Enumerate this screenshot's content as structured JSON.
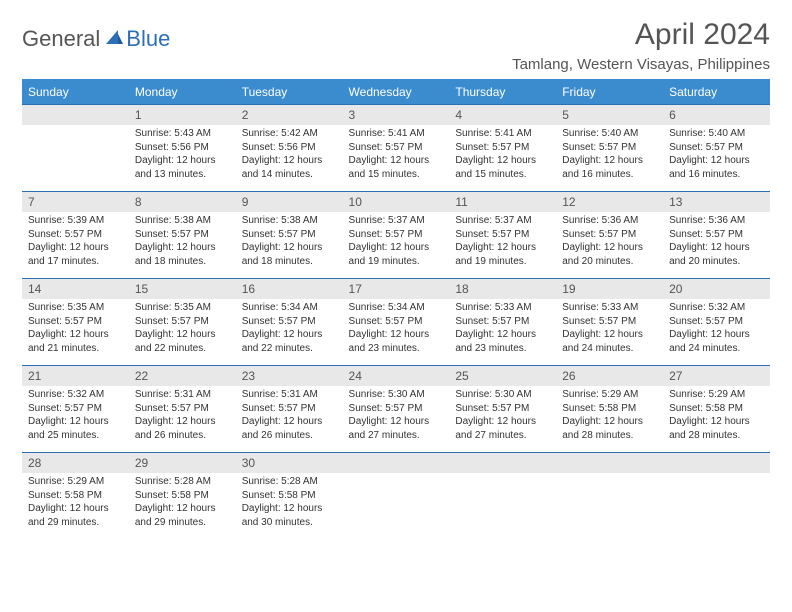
{
  "logo": {
    "text1": "General",
    "text2": "Blue"
  },
  "title": "April 2024",
  "location": "Tamlang, Western Visayas, Philippines",
  "colors": {
    "header_bg": "#3b8ccf",
    "header_text": "#ffffff",
    "date_bg": "#e8e8e8",
    "date_text": "#555555",
    "border": "#2c6fb5",
    "body_text": "#333333"
  },
  "weekdays": [
    "Sunday",
    "Monday",
    "Tuesday",
    "Wednesday",
    "Thursday",
    "Friday",
    "Saturday"
  ],
  "weeks": [
    {
      "dates": [
        "",
        "1",
        "2",
        "3",
        "4",
        "5",
        "6"
      ],
      "cells": [
        null,
        {
          "sunrise": "Sunrise: 5:43 AM",
          "sunset": "Sunset: 5:56 PM",
          "day1": "Daylight: 12 hours",
          "day2": "and 13 minutes."
        },
        {
          "sunrise": "Sunrise: 5:42 AM",
          "sunset": "Sunset: 5:56 PM",
          "day1": "Daylight: 12 hours",
          "day2": "and 14 minutes."
        },
        {
          "sunrise": "Sunrise: 5:41 AM",
          "sunset": "Sunset: 5:57 PM",
          "day1": "Daylight: 12 hours",
          "day2": "and 15 minutes."
        },
        {
          "sunrise": "Sunrise: 5:41 AM",
          "sunset": "Sunset: 5:57 PM",
          "day1": "Daylight: 12 hours",
          "day2": "and 15 minutes."
        },
        {
          "sunrise": "Sunrise: 5:40 AM",
          "sunset": "Sunset: 5:57 PM",
          "day1": "Daylight: 12 hours",
          "day2": "and 16 minutes."
        },
        {
          "sunrise": "Sunrise: 5:40 AM",
          "sunset": "Sunset: 5:57 PM",
          "day1": "Daylight: 12 hours",
          "day2": "and 16 minutes."
        }
      ]
    },
    {
      "dates": [
        "7",
        "8",
        "9",
        "10",
        "11",
        "12",
        "13"
      ],
      "cells": [
        {
          "sunrise": "Sunrise: 5:39 AM",
          "sunset": "Sunset: 5:57 PM",
          "day1": "Daylight: 12 hours",
          "day2": "and 17 minutes."
        },
        {
          "sunrise": "Sunrise: 5:38 AM",
          "sunset": "Sunset: 5:57 PM",
          "day1": "Daylight: 12 hours",
          "day2": "and 18 minutes."
        },
        {
          "sunrise": "Sunrise: 5:38 AM",
          "sunset": "Sunset: 5:57 PM",
          "day1": "Daylight: 12 hours",
          "day2": "and 18 minutes."
        },
        {
          "sunrise": "Sunrise: 5:37 AM",
          "sunset": "Sunset: 5:57 PM",
          "day1": "Daylight: 12 hours",
          "day2": "and 19 minutes."
        },
        {
          "sunrise": "Sunrise: 5:37 AM",
          "sunset": "Sunset: 5:57 PM",
          "day1": "Daylight: 12 hours",
          "day2": "and 19 minutes."
        },
        {
          "sunrise": "Sunrise: 5:36 AM",
          "sunset": "Sunset: 5:57 PM",
          "day1": "Daylight: 12 hours",
          "day2": "and 20 minutes."
        },
        {
          "sunrise": "Sunrise: 5:36 AM",
          "sunset": "Sunset: 5:57 PM",
          "day1": "Daylight: 12 hours",
          "day2": "and 20 minutes."
        }
      ]
    },
    {
      "dates": [
        "14",
        "15",
        "16",
        "17",
        "18",
        "19",
        "20"
      ],
      "cells": [
        {
          "sunrise": "Sunrise: 5:35 AM",
          "sunset": "Sunset: 5:57 PM",
          "day1": "Daylight: 12 hours",
          "day2": "and 21 minutes."
        },
        {
          "sunrise": "Sunrise: 5:35 AM",
          "sunset": "Sunset: 5:57 PM",
          "day1": "Daylight: 12 hours",
          "day2": "and 22 minutes."
        },
        {
          "sunrise": "Sunrise: 5:34 AM",
          "sunset": "Sunset: 5:57 PM",
          "day1": "Daylight: 12 hours",
          "day2": "and 22 minutes."
        },
        {
          "sunrise": "Sunrise: 5:34 AM",
          "sunset": "Sunset: 5:57 PM",
          "day1": "Daylight: 12 hours",
          "day2": "and 23 minutes."
        },
        {
          "sunrise": "Sunrise: 5:33 AM",
          "sunset": "Sunset: 5:57 PM",
          "day1": "Daylight: 12 hours",
          "day2": "and 23 minutes."
        },
        {
          "sunrise": "Sunrise: 5:33 AM",
          "sunset": "Sunset: 5:57 PM",
          "day1": "Daylight: 12 hours",
          "day2": "and 24 minutes."
        },
        {
          "sunrise": "Sunrise: 5:32 AM",
          "sunset": "Sunset: 5:57 PM",
          "day1": "Daylight: 12 hours",
          "day2": "and 24 minutes."
        }
      ]
    },
    {
      "dates": [
        "21",
        "22",
        "23",
        "24",
        "25",
        "26",
        "27"
      ],
      "cells": [
        {
          "sunrise": "Sunrise: 5:32 AM",
          "sunset": "Sunset: 5:57 PM",
          "day1": "Daylight: 12 hours",
          "day2": "and 25 minutes."
        },
        {
          "sunrise": "Sunrise: 5:31 AM",
          "sunset": "Sunset: 5:57 PM",
          "day1": "Daylight: 12 hours",
          "day2": "and 26 minutes."
        },
        {
          "sunrise": "Sunrise: 5:31 AM",
          "sunset": "Sunset: 5:57 PM",
          "day1": "Daylight: 12 hours",
          "day2": "and 26 minutes."
        },
        {
          "sunrise": "Sunrise: 5:30 AM",
          "sunset": "Sunset: 5:57 PM",
          "day1": "Daylight: 12 hours",
          "day2": "and 27 minutes."
        },
        {
          "sunrise": "Sunrise: 5:30 AM",
          "sunset": "Sunset: 5:57 PM",
          "day1": "Daylight: 12 hours",
          "day2": "and 27 minutes."
        },
        {
          "sunrise": "Sunrise: 5:29 AM",
          "sunset": "Sunset: 5:58 PM",
          "day1": "Daylight: 12 hours",
          "day2": "and 28 minutes."
        },
        {
          "sunrise": "Sunrise: 5:29 AM",
          "sunset": "Sunset: 5:58 PM",
          "day1": "Daylight: 12 hours",
          "day2": "and 28 minutes."
        }
      ]
    },
    {
      "dates": [
        "28",
        "29",
        "30",
        "",
        "",
        "",
        ""
      ],
      "cells": [
        {
          "sunrise": "Sunrise: 5:29 AM",
          "sunset": "Sunset: 5:58 PM",
          "day1": "Daylight: 12 hours",
          "day2": "and 29 minutes."
        },
        {
          "sunrise": "Sunrise: 5:28 AM",
          "sunset": "Sunset: 5:58 PM",
          "day1": "Daylight: 12 hours",
          "day2": "and 29 minutes."
        },
        {
          "sunrise": "Sunrise: 5:28 AM",
          "sunset": "Sunset: 5:58 PM",
          "day1": "Daylight: 12 hours",
          "day2": "and 30 minutes."
        },
        null,
        null,
        null,
        null
      ]
    }
  ]
}
